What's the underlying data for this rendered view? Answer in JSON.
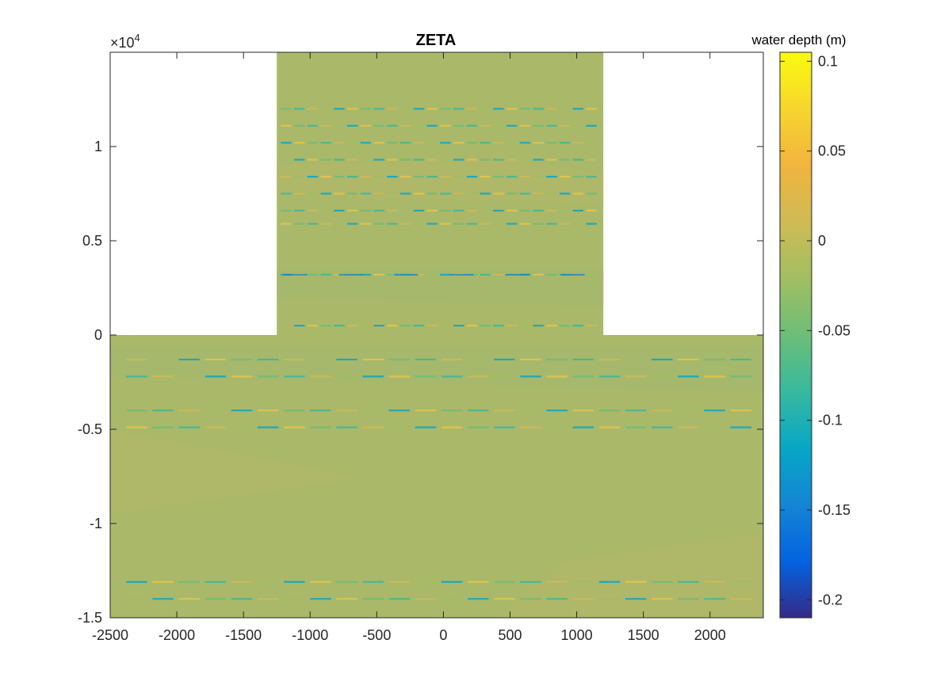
{
  "chart_data": {
    "type": "heatmap",
    "title": "ZETA",
    "xlim": [
      -2500,
      2400
    ],
    "ylim": [
      -15000,
      15000
    ],
    "x_ticks": [
      -2500,
      -2000,
      -1500,
      -1000,
      -500,
      0,
      500,
      1000,
      1500,
      2000
    ],
    "x_tick_labels": [
      "-2500",
      "-2000",
      "-1500",
      "-1000",
      "-500",
      "0",
      "500",
      "1000",
      "1500",
      "2000"
    ],
    "y_ticks": [
      -15000,
      -10000,
      -5000,
      0,
      5000,
      10000
    ],
    "y_tick_labels": [
      "-1.5",
      "-1",
      "-0.5",
      "0",
      "0.5",
      "1"
    ],
    "y_exponent_label": "×10",
    "y_exponent_power": "4",
    "domain": {
      "channel_x": [
        -1250,
        1200
      ],
      "channel_y": [
        0,
        15000
      ],
      "basin_x": [
        -2500,
        2400
      ],
      "basin_y": [
        -15000,
        0
      ],
      "background_value": 0
    },
    "anomaly_rows_y": [
      12000,
      11100,
      10200,
      9300,
      8400,
      7500,
      6600,
      5900,
      3200,
      500,
      -1300,
      -2200,
      -4000,
      -4900,
      -13100,
      -14000
    ],
    "colorbar": {
      "label": "water depth (m)",
      "clim": [
        -0.21,
        0.105
      ],
      "ticks": [
        0.1,
        0.05,
        0,
        -0.05,
        -0.1,
        -0.15,
        -0.2
      ],
      "tick_labels": [
        "0.1",
        "0.05",
        "0",
        "-0.05",
        "-0.1",
        "-0.15",
        "-0.2"
      ],
      "colormap": "parula"
    },
    "colors": {
      "field_base": "#aab86a",
      "field_green": "#a3b86e",
      "field_olive": "#b2b767"
    },
    "grid": false
  }
}
